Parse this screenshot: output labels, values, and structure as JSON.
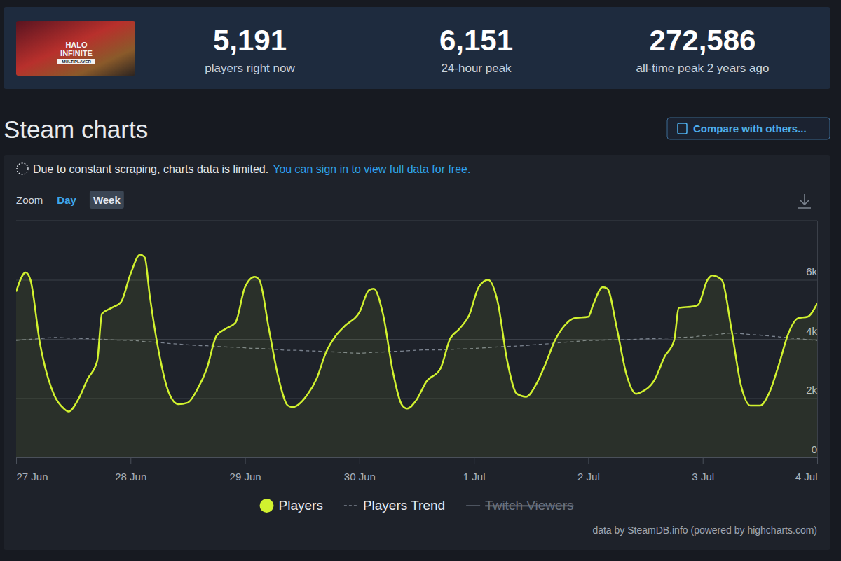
{
  "header": {
    "image_text": [
      "HALO",
      "INFINITE",
      "MULTIPLAYER"
    ],
    "stats": [
      {
        "value": "5,191",
        "label": "players right now"
      },
      {
        "value": "6,151",
        "label": "24-hour peak"
      },
      {
        "value": "272,586",
        "label": "all-time peak 2 years ago"
      }
    ]
  },
  "compare_button": "Compare with others...",
  "notice": {
    "text": "Due to constant scraping, charts data is limited.",
    "link": "You can sign in to view full data for free."
  },
  "zoom": {
    "label": "Zoom",
    "options": [
      "Day",
      "Week"
    ],
    "selected": "Week"
  },
  "credit": "data by SteamDB.info (powered by highcharts.com)",
  "chart_data": {
    "type": "line",
    "title": "Steam charts",
    "x": [
      0,
      2,
      3,
      5,
      8,
      10,
      11,
      13,
      15,
      17,
      18,
      20,
      22,
      24,
      26,
      27,
      28,
      30,
      32,
      34,
      36,
      38,
      40,
      42,
      44,
      46,
      48,
      50,
      51,
      53,
      55,
      57,
      58,
      61,
      63,
      65,
      67,
      69,
      72,
      74,
      75,
      77,
      79,
      81,
      82,
      84,
      86,
      89,
      91,
      93,
      95,
      97,
      99,
      101,
      103,
      105,
      107,
      109,
      111,
      113,
      115,
      117,
      120,
      121,
      123,
      124,
      126,
      128,
      130,
      131,
      134,
      136,
      138,
      139,
      142,
      143,
      145,
      146,
      148,
      150,
      152,
      154,
      156,
      158,
      160,
      162,
      164,
      166,
      168
    ],
    "xlim": [
      0,
      168
    ],
    "xticks": [
      {
        "value": 0,
        "label": "27 Jun"
      },
      {
        "value": 24,
        "label": "28 Jun"
      },
      {
        "value": 48,
        "label": "29 Jun"
      },
      {
        "value": 72,
        "label": "30 Jun"
      },
      {
        "value": 96,
        "label": "1 Jul"
      },
      {
        "value": 120,
        "label": "2 Jul"
      },
      {
        "value": 144,
        "label": "3 Jul"
      },
      {
        "value": 168,
        "label": "4 Jul"
      }
    ],
    "ylim": [
      0,
      8000
    ],
    "yticks": [
      0,
      {
        "value": 2000,
        "label": "2k"
      },
      {
        "value": 4000,
        "label": "4k"
      },
      {
        "value": 6000,
        "label": "6k"
      }
    ],
    "grid": true,
    "legend": "bottom",
    "series": [
      {
        "name": "Players",
        "color": "#d1f12f",
        "type": "area",
        "line_style": "solid",
        "values": [
          5600,
          6250,
          6000,
          3850,
          2100,
          1650,
          1550,
          1950,
          2650,
          3250,
          4850,
          5050,
          5250,
          6200,
          6850,
          6750,
          5500,
          3500,
          2200,
          1800,
          1850,
          2300,
          3000,
          4100,
          4350,
          4550,
          5750,
          6100,
          6000,
          4350,
          2700,
          1750,
          1700,
          2100,
          2650,
          3550,
          4100,
          4450,
          4900,
          5650,
          5700,
          4800,
          2900,
          1750,
          1650,
          1950,
          2550,
          3000,
          4000,
          4350,
          4800,
          5750,
          6000,
          5250,
          3250,
          2150,
          2050,
          2450,
          3150,
          3950,
          4450,
          4700,
          4750,
          5150,
          5750,
          5700,
          4350,
          2800,
          2150,
          2200,
          2650,
          3400,
          3950,
          5050,
          5100,
          5150,
          6000,
          6150,
          6000,
          4350,
          2450,
          1750,
          1750,
          2200,
          3150,
          4200,
          4700,
          4750,
          5200
        ]
      },
      {
        "name": "Players Trend",
        "color": "#7b838f",
        "type": "line",
        "line_style": "dashed",
        "values": [
          3950,
          3980,
          3990,
          4010,
          4050,
          4040,
          4030,
          4020,
          4010,
          3990,
          3990,
          3970,
          3960,
          3950,
          3930,
          3910,
          3900,
          3880,
          3850,
          3830,
          3800,
          3780,
          3770,
          3750,
          3730,
          3720,
          3700,
          3680,
          3680,
          3660,
          3640,
          3620,
          3620,
          3600,
          3590,
          3570,
          3560,
          3540,
          3520,
          3540,
          3550,
          3560,
          3580,
          3590,
          3600,
          3620,
          3630,
          3630,
          3650,
          3660,
          3670,
          3690,
          3710,
          3730,
          3750,
          3760,
          3780,
          3810,
          3830,
          3860,
          3890,
          3910,
          3950,
          3950,
          3960,
          3970,
          3970,
          3980,
          3990,
          4000,
          4010,
          4030,
          4040,
          4050,
          4070,
          4090,
          4120,
          4130,
          4170,
          4200,
          4180,
          4150,
          4130,
          4100,
          4070,
          4040,
          4010,
          3980,
          3950
        ]
      },
      {
        "name": "Twitch Viewers",
        "color": "#5e6672",
        "type": "line",
        "line_style": "solid",
        "values": [
          null,
          null,
          null,
          null,
          null,
          null,
          null,
          null,
          null,
          null,
          null,
          null,
          null,
          null,
          null,
          null,
          null,
          null,
          null,
          null,
          null,
          null,
          null,
          null,
          null,
          null,
          null,
          null,
          null,
          null,
          null,
          null,
          null,
          null,
          null,
          null,
          null,
          null,
          null,
          null,
          null,
          null,
          null,
          null,
          null,
          null,
          null,
          null,
          null,
          null,
          null,
          null,
          null,
          null,
          null,
          null,
          null,
          null,
          null,
          null,
          null,
          null,
          null,
          null,
          null,
          null,
          null,
          null,
          null,
          null,
          null,
          null,
          null,
          null,
          null,
          null,
          null,
          null,
          null,
          null,
          null,
          null,
          null,
          null,
          null,
          null,
          null,
          null,
          null
        ]
      }
    ]
  }
}
